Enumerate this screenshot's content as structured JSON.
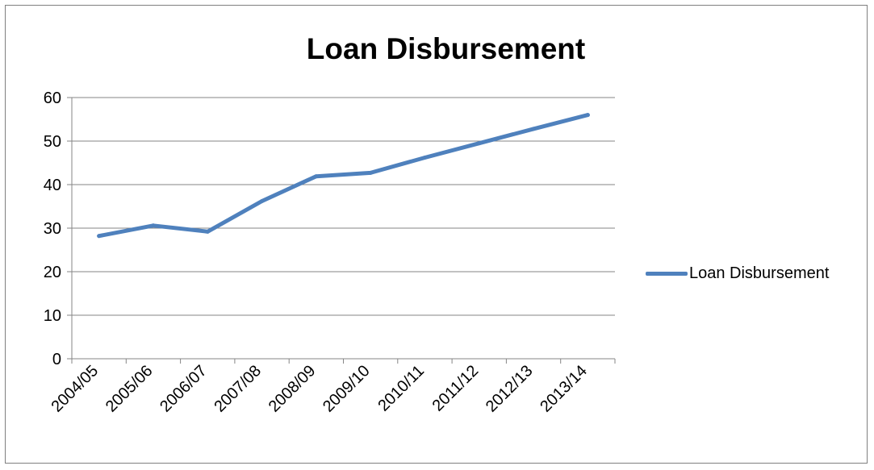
{
  "chart_data": {
    "type": "line",
    "title": "Loan Disbursement",
    "xlabel": "",
    "ylabel": "",
    "categories": [
      "2004/05",
      "2005/06",
      "2006/07",
      "2007/08",
      "2008/09",
      "2009/10",
      "2010/11",
      "2011/12",
      "2012/13",
      "2013/14"
    ],
    "series": [
      {
        "name": "Loan Disbursement",
        "color": "#4f81bd",
        "values": [
          28.2,
          30.6,
          29.2,
          36.2,
          41.9,
          42.7,
          46.2,
          49.5,
          52.8,
          56.0
        ]
      }
    ],
    "ylim": [
      0,
      60
    ],
    "yticks": [
      0,
      10,
      20,
      30,
      40,
      50,
      60
    ],
    "grid": true,
    "legend": "right"
  }
}
